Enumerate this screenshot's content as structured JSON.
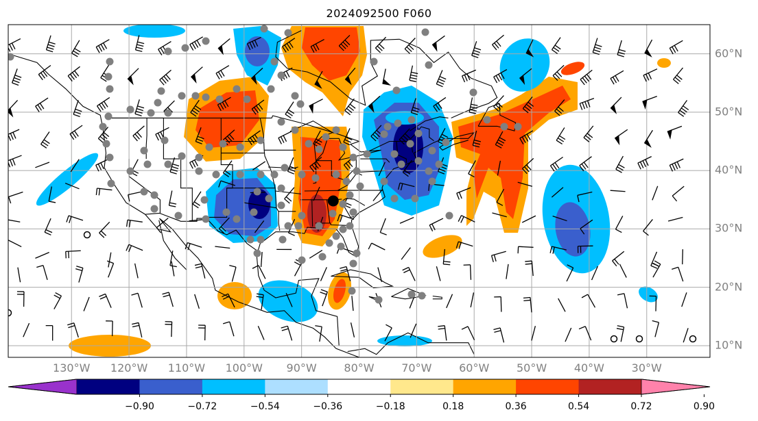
{
  "title": "2024092500 F060",
  "map": {
    "lon_range": [
      -141,
      -19
    ],
    "lat_range": [
      8,
      65
    ],
    "lon_ticks": [
      {
        "value": -130,
        "label": "130°W"
      },
      {
        "value": -120,
        "label": "120°W"
      },
      {
        "value": -110,
        "label": "110°W"
      },
      {
        "value": -100,
        "label": "100°W"
      },
      {
        "value": -90,
        "label": "90°W"
      },
      {
        "value": -80,
        "label": "80°W"
      },
      {
        "value": -70,
        "label": "70°W"
      },
      {
        "value": -60,
        "label": "60°W"
      },
      {
        "value": -50,
        "label": "50°W"
      },
      {
        "value": -40,
        "label": "40°W"
      },
      {
        "value": -30,
        "label": "30°W"
      }
    ],
    "lat_ticks": [
      {
        "value": 60,
        "label": "60°N"
      },
      {
        "value": 50,
        "label": "50°N"
      },
      {
        "value": 40,
        "label": "40°N"
      },
      {
        "value": 30,
        "label": "30°N"
      },
      {
        "value": 20,
        "label": "20°N"
      },
      {
        "value": 10,
        "label": "10°N"
      }
    ],
    "center_marker": {
      "lon": -84.5,
      "lat": 34.8
    },
    "grid": true,
    "wind_barbs": true
  },
  "colorbar": {
    "labels": [
      "−0.90",
      "−0.72",
      "−0.54",
      "−0.36",
      "−0.18",
      "0.18",
      "0.36",
      "0.54",
      "0.72",
      "0.90"
    ],
    "colors": [
      "#9932CC",
      "#000080",
      "#3A5FCD",
      "#00BFFF",
      "#ADDFFF",
      "#FFFFFF",
      "#FFE88C",
      "#FFA500",
      "#FF4500",
      "#B22222",
      "#FF82AB"
    ]
  },
  "colors": {
    "grid": "#a9a9a9",
    "axis_label": "#808080",
    "coast": "#000000"
  }
}
